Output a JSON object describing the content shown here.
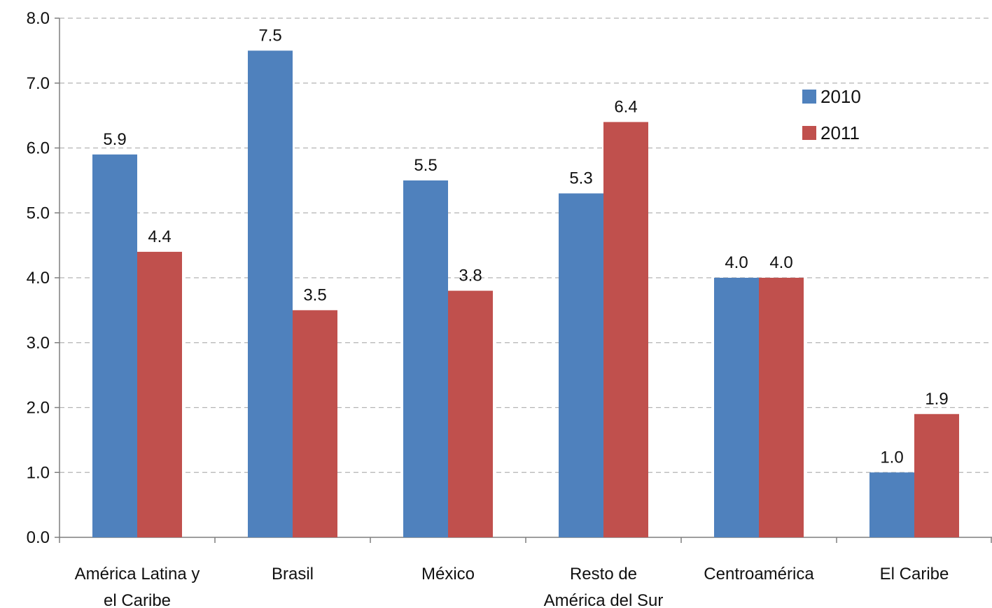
{
  "chart_data": {
    "type": "bar",
    "categories": [
      [
        "América Latina y",
        "el Caribe"
      ],
      [
        "Brasil"
      ],
      [
        "México"
      ],
      [
        "Resto de",
        "América del Sur"
      ],
      [
        "Centroamérica"
      ],
      [
        "El Caribe"
      ]
    ],
    "series": [
      {
        "name": "2010",
        "color": "#4f81bd",
        "values": [
          5.9,
          7.5,
          5.5,
          5.3,
          4.0,
          1.0
        ]
      },
      {
        "name": "2011",
        "color": "#c0504d",
        "values": [
          4.4,
          3.5,
          3.8,
          6.4,
          4.0,
          1.9
        ]
      }
    ],
    "ylim": [
      0,
      8
    ],
    "yticks": [
      "0.0",
      "1.0",
      "2.0",
      "3.0",
      "4.0",
      "5.0",
      "6.0",
      "7.0",
      "8.0"
    ],
    "grid": true,
    "legend_position": "top-right"
  }
}
